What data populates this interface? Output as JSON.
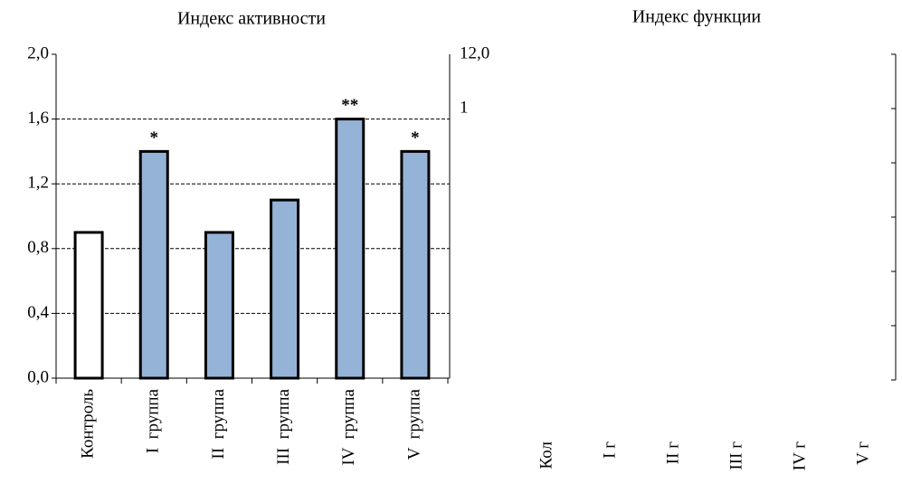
{
  "chart_data": [
    {
      "type": "bar",
      "title": "Индекс активности",
      "categories": [
        "Контроль",
        "I  группа",
        "II  группа",
        "III  группа",
        "IV  группа",
        "V  группа"
      ],
      "values": [
        0.9,
        1.4,
        0.9,
        1.1,
        1.6,
        1.4
      ],
      "significance": [
        null,
        "*",
        null,
        null,
        "**",
        "*"
      ],
      "colors": [
        "#ffffff",
        "#95b3d7",
        "#95b3d7",
        "#95b3d7",
        "#95b3d7",
        "#95b3d7"
      ],
      "ylim": [
        0,
        2
      ],
      "yticks": [
        {
          "value": 0,
          "label": "0,0"
        },
        {
          "value": 0.4,
          "label": "0,4"
        },
        {
          "value": 0.8,
          "label": "0,8"
        },
        {
          "value": 1.2,
          "label": "1,2"
        },
        {
          "value": 1.6,
          "label": "1,6"
        },
        {
          "value": 2,
          "label": "2,0"
        }
      ],
      "grid": true
    },
    {
      "type": "bar",
      "title": "Индекс функции",
      "categories": [
        "Кол",
        "I г",
        "II г",
        "III г",
        "IV г",
        "V г"
      ],
      "values": [
        null,
        null,
        null,
        null,
        null,
        null
      ],
      "annotations": [
        "12,0",
        "1"
      ]
    }
  ]
}
